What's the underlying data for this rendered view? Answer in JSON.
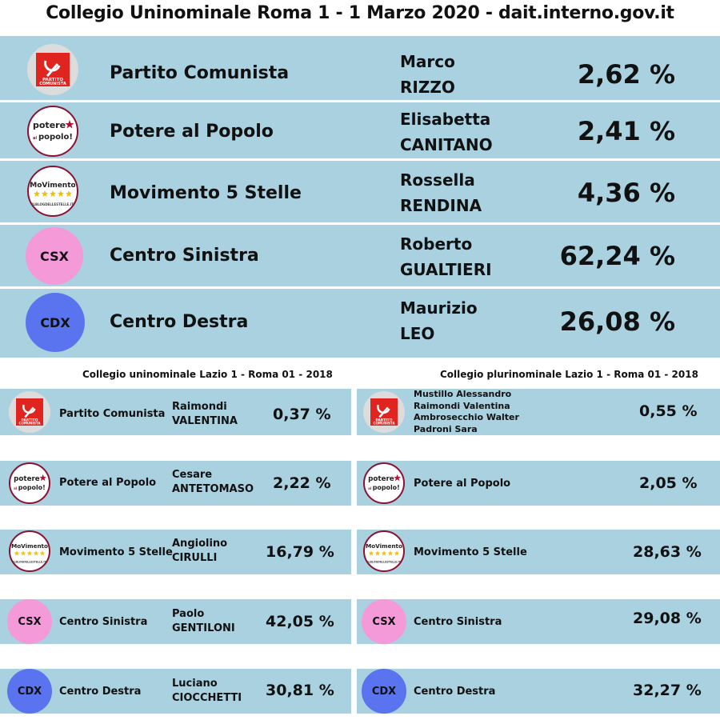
{
  "title": "Collegio Uninominale Roma 1 - 1 Marzo 2020 - dait.interno.gov.it",
  "logos": {
    "pc_line1": "PARTITO",
    "pc_line2": "COMUNISTA",
    "pap_line1": "potere",
    "pap_line2": "popolo!",
    "pap_al": "al",
    "m5s_text": "MoVimento",
    "m5s_url": "ILBLOGDELLESTELLE.IT",
    "csx": "CSX",
    "cdx": "CDX"
  },
  "results_2020": [
    {
      "party": "Partito Comunista",
      "first_name": "Marco",
      "last_name": "RIZZO",
      "pct": "2,62 %"
    },
    {
      "party": "Potere al Popolo",
      "first_name": "Elisabetta",
      "last_name": "CANITANO",
      "pct": "2,41 %"
    },
    {
      "party": "Movimento 5 Stelle",
      "first_name": "Rossella",
      "last_name": "RENDINA",
      "pct": "4,36 %"
    },
    {
      "party": "Centro Sinistra",
      "first_name": "Roberto",
      "last_name": "GUALTIERI",
      "pct": "62,24 %"
    },
    {
      "party": "Centro Destra",
      "first_name": "Maurizio",
      "last_name": "LEO",
      "pct": "26,08 %"
    }
  ],
  "uninominale_2018": {
    "heading": "Collegio uninominale Lazio 1 - Roma 01 - 2018",
    "rows": [
      {
        "party": "Partito Comunista",
        "first_name": "Raimondi",
        "last_name": "VALENTINA",
        "pct": "0,37 %"
      },
      {
        "party": "Potere al Popolo",
        "first_name": "Cesare",
        "last_name": "ANTETOMASO",
        "pct": "2,22 %"
      },
      {
        "party": "Movimento 5 Stelle",
        "first_name": "Angiolino",
        "last_name": "CIRULLI",
        "pct": "16,79 %"
      },
      {
        "party": "Centro Sinistra",
        "first_name": "Paolo",
        "last_name": "GENTILONI",
        "pct": "42,05 %"
      },
      {
        "party": "Centro Destra",
        "first_name": "Luciano",
        "last_name": "CIOCCHETTI",
        "pct": "30,81 %"
      }
    ]
  },
  "plurinominale_2018": {
    "heading": "Collegio plurinominale Lazio 1 - Roma 01 - 2018",
    "candidate_list": [
      "Mustillo Alessandro",
      "Raimondi Valentina",
      "Ambrosecchio Walter",
      "Padroni Sara"
    ],
    "rows": [
      {
        "party": "",
        "pct": "0,55 %"
      },
      {
        "party": "Potere al Popolo",
        "pct": "2,05 %"
      },
      {
        "party": "Movimento 5 Stelle",
        "pct": "28,63 %"
      },
      {
        "party": "Centro Sinistra",
        "pct": "29,08 %"
      },
      {
        "party": "Centro Destra",
        "pct": "32,27 %"
      }
    ]
  },
  "colors": {
    "band": "#a9d1e0",
    "csx": "#f49ad9",
    "cdx": "#5a73ee",
    "pc_red": "#e02520"
  }
}
